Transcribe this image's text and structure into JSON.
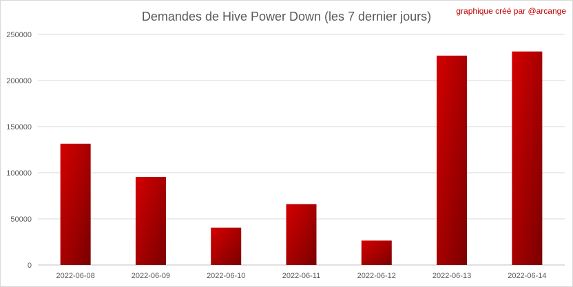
{
  "chart_data": {
    "type": "bar",
    "title": "Demandes de Hive Power Down (les 7 dernier jours)",
    "credit": "graphique créé par @arcange",
    "categories": [
      "2022-06-08",
      "2022-06-09",
      "2022-06-10",
      "2022-06-11",
      "2022-06-12",
      "2022-06-13",
      "2022-06-14"
    ],
    "values": [
      131500,
      95500,
      40500,
      66000,
      26500,
      227000,
      231500
    ],
    "ylim": [
      0,
      250000
    ],
    "yticks": [
      0,
      50000,
      100000,
      150000,
      200000,
      250000
    ],
    "ytick_labels": [
      "0",
      "50000",
      "100000",
      "150000",
      "200000",
      "250000"
    ],
    "grid": true,
    "legend": "none",
    "bar_color_light": "#d40000",
    "bar_color_dark": "#7a0000",
    "xlabel": "",
    "ylabel": ""
  }
}
